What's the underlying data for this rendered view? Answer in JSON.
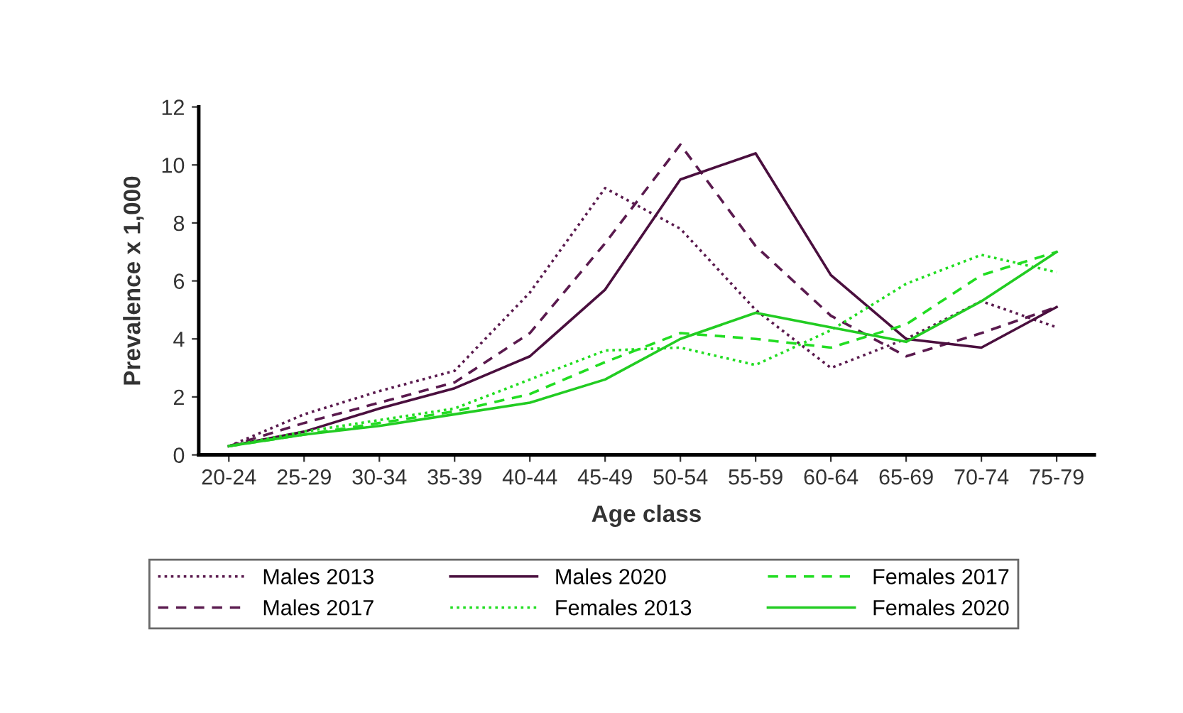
{
  "chart_data": {
    "type": "line",
    "xlabel": "Age class",
    "ylabel": "Prevalence x 1,000",
    "categories": [
      "20-24",
      "25-29",
      "30-34",
      "35-39",
      "40-44",
      "45-49",
      "50-54",
      "55-59",
      "60-64",
      "65-69",
      "70-74",
      "75-79"
    ],
    "ylim": [
      0,
      12
    ],
    "yticks": [
      0,
      2,
      4,
      6,
      8,
      10,
      12
    ],
    "grid": false,
    "legend": "bottom",
    "marker": "none",
    "series": [
      {
        "name": "Males 2013",
        "color": "#5a1a4e",
        "line_style": "dotted",
        "values": [
          0.3,
          1.4,
          2.2,
          2.9,
          5.6,
          9.2,
          7.8,
          5.0,
          3.0,
          4.0,
          5.3,
          4.4
        ]
      },
      {
        "name": "Males 2017",
        "color": "#5a1a4e",
        "line_style": "dashed",
        "values": [
          0.3,
          1.1,
          1.8,
          2.5,
          4.2,
          7.3,
          10.7,
          7.2,
          4.8,
          3.4,
          4.2,
          5.1
        ]
      },
      {
        "name": "Males 2020",
        "color": "#4a0f3e",
        "line_style": "solid",
        "values": [
          0.3,
          0.8,
          1.6,
          2.3,
          3.4,
          5.7,
          9.5,
          10.4,
          6.2,
          4.0,
          3.7,
          5.1
        ]
      },
      {
        "name": "Females 2013",
        "color": "#22dd22",
        "line_style": "dotted",
        "values": [
          0.3,
          0.8,
          1.2,
          1.6,
          2.6,
          3.6,
          3.7,
          3.1,
          4.3,
          5.9,
          6.9,
          6.3
        ]
      },
      {
        "name": "Females 2017",
        "color": "#22dd22",
        "line_style": "dashed",
        "values": [
          0.3,
          0.7,
          1.1,
          1.5,
          2.1,
          3.2,
          4.2,
          4.0,
          3.7,
          4.5,
          6.2,
          7.0
        ]
      },
      {
        "name": "Females 2020",
        "color": "#22cc22",
        "line_style": "solid",
        "values": [
          0.3,
          0.7,
          1.0,
          1.4,
          1.8,
          2.6,
          4.0,
          4.9,
          4.4,
          3.9,
          5.3,
          7.0
        ]
      }
    ]
  }
}
